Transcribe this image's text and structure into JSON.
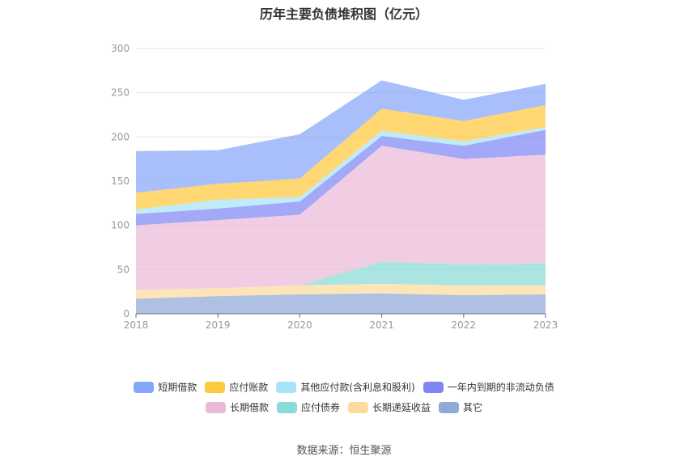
{
  "title": "历年主要负债堆积图（亿元）",
  "source": "数据来源：恒生聚源",
  "chart_data": {
    "type": "area",
    "stacked": true,
    "title": "历年主要负债堆积图（亿元）",
    "x": [
      "2018",
      "2019",
      "2020",
      "2021",
      "2022",
      "2023"
    ],
    "ylim": [
      0,
      300
    ],
    "yticks": [
      0,
      50,
      100,
      150,
      200,
      250,
      300
    ],
    "grid": true,
    "legend_position": "bottom",
    "series": [
      {
        "name": "其它",
        "color": "#8fa9d8",
        "values": [
          17,
          20,
          22,
          23,
          21,
          22
        ]
      },
      {
        "name": "长期递延收益",
        "color": "#fedb9c",
        "values": [
          10,
          9,
          10,
          11,
          11,
          10
        ]
      },
      {
        "name": "应付债券",
        "color": "#89dbd7",
        "values": [
          0,
          0,
          0,
          25,
          24,
          25
        ]
      },
      {
        "name": "长期借款",
        "color": "#ebbad9",
        "values": [
          73,
          77,
          80,
          131,
          119,
          123
        ]
      },
      {
        "name": "一年内到期的非流动负债",
        "color": "#7f86f4",
        "values": [
          13,
          13,
          15,
          11,
          15,
          28
        ]
      },
      {
        "name": "其他应付款(含利息和股利)",
        "color": "#a6e3f8",
        "values": [
          5,
          10,
          5,
          6,
          5,
          3
        ]
      },
      {
        "name": "应付账款",
        "color": "#ffc93f",
        "values": [
          19,
          18,
          21,
          25,
          23,
          25
        ]
      },
      {
        "name": "短期借款",
        "color": "#86a6fb",
        "values": [
          47,
          38,
          50,
          32,
          24,
          24
        ]
      }
    ]
  },
  "legend": [
    {
      "name": "短期借款",
      "color": "#86a6fb"
    },
    {
      "name": "应付账款",
      "color": "#ffc93f"
    },
    {
      "name": "其他应付款(含利息和股利)",
      "color": "#a6e3f8"
    },
    {
      "name": "一年内到期的非流动负债",
      "color": "#7f86f4"
    },
    {
      "name": "长期借款",
      "color": "#ebbad9"
    },
    {
      "name": "应付债券",
      "color": "#89dbd7"
    },
    {
      "name": "长期递延收益",
      "color": "#fedb9c"
    },
    {
      "name": "其它",
      "color": "#8fa9d8"
    }
  ]
}
